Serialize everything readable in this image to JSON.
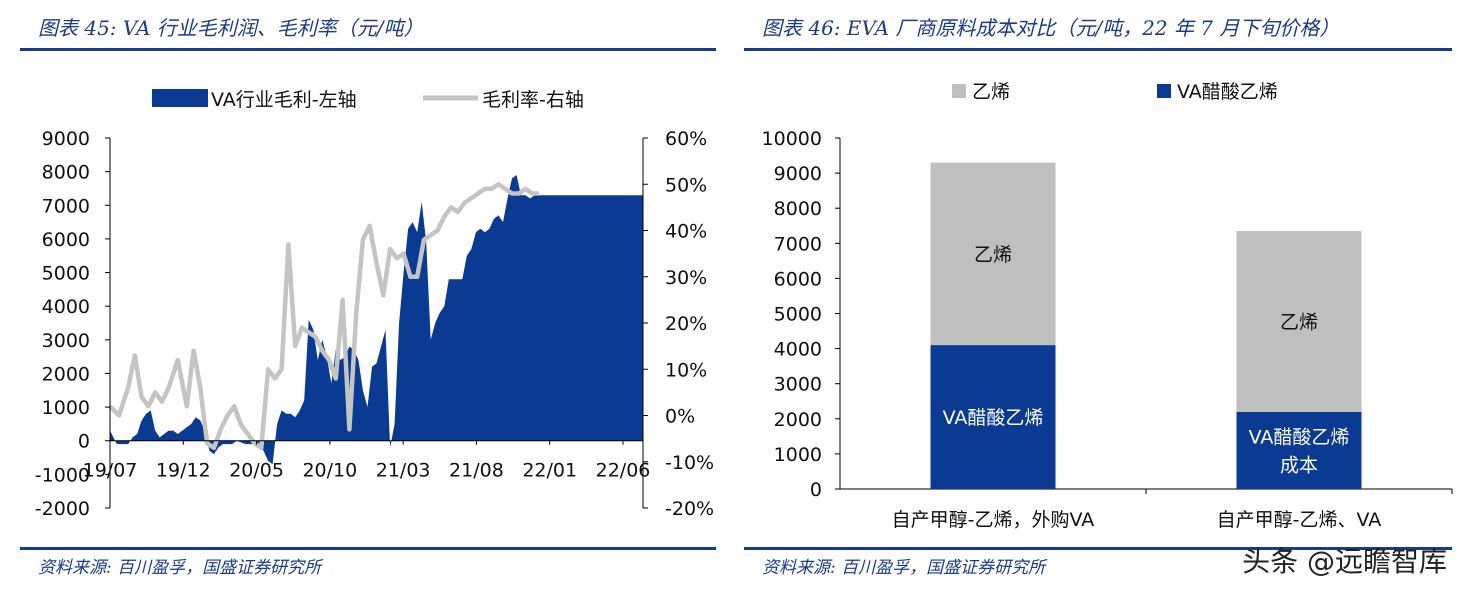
{
  "left": {
    "title": "图表 45:  VA 行业毛利润、毛利率（元/吨）",
    "source": "资料来源:  百川盈孚，国盛证券研究所"
  },
  "right": {
    "title": "图表 46:  EVA 厂商原料成本对比（元/吨，22 年 7 月下旬价格）",
    "source": "资料来源:  百川盈孚，国盛证券研究所"
  },
  "watermark": "头条 @远瞻智库",
  "colors": {
    "navy": "#0a3a92",
    "gray": "#bfbfbf",
    "accent": "#1b3a8a"
  },
  "chart_data": [
    {
      "type": "area",
      "legend_position": "top",
      "grid": false,
      "x_tick_labels": [
        "19/07",
        "19/12",
        "20/05",
        "20/10",
        "21/03",
        "21/08",
        "22/01",
        "22/06"
      ],
      "ylim": [
        -2000,
        9000
      ],
      "y_ticks": [
        -2000,
        -1000,
        0,
        1000,
        2000,
        3000,
        4000,
        5000,
        6000,
        7000,
        8000,
        9000
      ],
      "y_tick_labels": [
        "-2000",
        "-1000",
        "0",
        "1000",
        "2000",
        "3000",
        "4000",
        "5000",
        "6000",
        "7000",
        "8000",
        "9000"
      ],
      "y2lim": [
        -20,
        60
      ],
      "y2_ticks": [
        -20,
        -10,
        0,
        10,
        20,
        30,
        40,
        50,
        60
      ],
      "y2_tick_labels": [
        "-20%",
        "-10%",
        "0%",
        "10%",
        "20%",
        "30%",
        "40%",
        "50%",
        "60%"
      ],
      "series": [
        {
          "name": "VA行业毛利-左轴",
          "kind": "area",
          "axis": "left",
          "color": "#0a3a92",
          "x": [
            0,
            3,
            5,
            8,
            10,
            12,
            14,
            16,
            18,
            20,
            22,
            24,
            26,
            28,
            30,
            32,
            34,
            36,
            38,
            40,
            42,
            44,
            46,
            48,
            50,
            52,
            54,
            56,
            58,
            60,
            62,
            64,
            66,
            68,
            70,
            72,
            74,
            76,
            78,
            80,
            82,
            84,
            86,
            88,
            90,
            92,
            94,
            96,
            98,
            100,
            102,
            104,
            106,
            108,
            110,
            112,
            114,
            116,
            118,
            120,
            122,
            124,
            126,
            128,
            130,
            132,
            134,
            136,
            138,
            140,
            142,
            144,
            146,
            148,
            150,
            152,
            154,
            156,
            158,
            160,
            162,
            164,
            166,
            168,
            170,
            172,
            174,
            176,
            178,
            180,
            182,
            184,
            186,
            188,
            190,
            192,
            194,
            196,
            198,
            200,
            202,
            204,
            206,
            208,
            210,
            212,
            214,
            216,
            218,
            220,
            222,
            224,
            226,
            228,
            230,
            232,
            234,
            236
          ],
          "values": [
            300,
            -100,
            -100,
            -100,
            100,
            200,
            600,
            800,
            900,
            300,
            100,
            200,
            300,
            300,
            200,
            300,
            400,
            500,
            700,
            600,
            300,
            -300,
            -400,
            -200,
            -100,
            -100,
            -100,
            0,
            -50,
            -100,
            -100,
            -100,
            -150,
            -300,
            -600,
            -700,
            500,
            900,
            800,
            800,
            700,
            900,
            1200,
            3600,
            3300,
            2400,
            3000,
            2500,
            1700,
            2700,
            2400,
            2500,
            2800,
            2700,
            2400,
            1500,
            1000,
            2200,
            2300,
            2800,
            3300,
            -200,
            500,
            3500,
            5000,
            6300,
            6500,
            6200,
            7100,
            5900,
            3000,
            3500,
            3800,
            4000,
            4800,
            4800,
            4800,
            4800,
            5500,
            5700,
            6200,
            6300,
            6200,
            6300,
            6600,
            6700,
            6500,
            7200,
            7800,
            7900,
            7300,
            7300,
            7200,
            7300,
            7300,
            7300,
            7300,
            7300,
            7300,
            7300,
            7300,
            7300,
            7300,
            7300,
            7300,
            7300,
            7300,
            7300,
            7300,
            7300,
            7300,
            7300,
            7300,
            7300,
            7300,
            7300,
            7300,
            7300
          ]
        },
        {
          "name": "毛利率-右轴",
          "kind": "line",
          "axis": "right",
          "color": "#c4c4c4",
          "x": [
            0,
            4,
            8,
            11,
            14,
            17,
            20,
            23,
            26,
            30,
            34,
            37,
            40,
            43,
            46,
            49,
            52,
            55,
            58,
            61,
            64,
            67,
            70,
            73,
            76,
            79,
            82,
            85,
            88,
            91,
            94,
            97,
            100,
            103,
            106,
            109,
            112,
            115,
            118,
            121,
            124,
            127,
            130,
            133,
            136,
            139,
            142,
            145,
            148,
            151,
            154,
            157,
            160,
            163,
            166,
            169,
            172,
            175,
            178,
            181,
            184,
            187,
            190
          ],
          "values": [
            2,
            0,
            6,
            13,
            4,
            2,
            5,
            3,
            6,
            12,
            2,
            14,
            6,
            -6,
            -7,
            -3,
            0,
            2,
            -2,
            -4,
            -6,
            -7,
            10,
            8,
            10,
            37,
            15,
            19,
            18,
            17,
            14,
            12,
            8,
            25,
            -3,
            22,
            38,
            41,
            33,
            26,
            36,
            34,
            35,
            30,
            30,
            38,
            39,
            40,
            43,
            45,
            44,
            46,
            47,
            48,
            49,
            49,
            50,
            49,
            48,
            48,
            49,
            48,
            48
          ]
        }
      ]
    },
    {
      "type": "bar",
      "stacked": true,
      "legend_position": "top",
      "grid": false,
      "categories": [
        "自产甲醇-乙烯，外购VA",
        "自产甲醇-乙烯、VA"
      ],
      "ylim": [
        0,
        10000
      ],
      "y_ticks": [
        0,
        1000,
        2000,
        3000,
        4000,
        5000,
        6000,
        7000,
        8000,
        9000,
        10000
      ],
      "y_tick_labels": [
        "0",
        "1000",
        "2000",
        "3000",
        "4000",
        "5000",
        "6000",
        "7000",
        "8000",
        "9000",
        "10000"
      ],
      "series": [
        {
          "name": "VA醋酸乙烯",
          "color": "#0a3a92",
          "values": [
            4100,
            2200
          ],
          "segment_labels": [
            [
              "VA醋酸乙烯"
            ],
            [
              "VA醋酸乙烯",
              "成本"
            ]
          ]
        },
        {
          "name": "乙烯",
          "color": "#bfbfbf",
          "values": [
            5200,
            5150
          ],
          "segment_labels": [
            [
              "乙烯"
            ],
            [
              "乙烯"
            ]
          ]
        }
      ],
      "legend_order": [
        1,
        0
      ]
    }
  ]
}
